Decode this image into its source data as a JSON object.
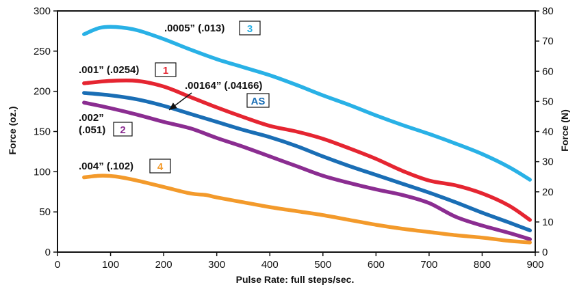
{
  "chart_data": {
    "type": "line",
    "xlabel": "Pulse Rate: full steps/sec.",
    "ylabel": "Force (oz.)",
    "y2label": "Force (N)",
    "xlim": [
      0,
      900
    ],
    "ylim": [
      0,
      300
    ],
    "y2lim": [
      0,
      80
    ],
    "xticks": [
      0,
      100,
      200,
      300,
      400,
      500,
      600,
      700,
      800,
      900
    ],
    "yticks": [
      0,
      50,
      100,
      150,
      200,
      250,
      300
    ],
    "y2ticks": [
      0,
      10,
      20,
      30,
      40,
      50,
      60,
      70,
      80
    ],
    "grid": false,
    "series": [
      {
        "id": "3",
        "color": "#29b1e6",
        "x": [
          50,
          80,
          110,
          150,
          200,
          250,
          300,
          350,
          400,
          450,
          500,
          550,
          600,
          650,
          700,
          750,
          800,
          850,
          890
        ],
        "y": [
          271,
          279,
          280,
          276,
          265,
          252,
          240,
          230,
          220,
          208,
          195,
          183,
          170,
          158,
          147,
          135,
          122,
          106,
          90
        ]
      },
      {
        "id": "1",
        "color": "#e52531",
        "x": [
          50,
          100,
          150,
          200,
          250,
          300,
          350,
          400,
          450,
          500,
          550,
          600,
          650,
          700,
          750,
          800,
          850,
          890
        ],
        "y": [
          210,
          213,
          213,
          206,
          193,
          180,
          168,
          157,
          150,
          141,
          129,
          116,
          101,
          89,
          83,
          73,
          58,
          40
        ]
      },
      {
        "id": "AS",
        "color": "#1a6eb5",
        "x": [
          50,
          100,
          150,
          200,
          250,
          300,
          350,
          400,
          450,
          500,
          550,
          600,
          650,
          700,
          750,
          800,
          850,
          890
        ],
        "y": [
          198,
          195,
          190,
          182,
          172,
          162,
          152,
          143,
          132,
          119,
          107,
          96,
          85,
          74,
          62,
          49,
          37,
          27
        ]
      },
      {
        "id": "2",
        "color": "#8b2d91",
        "x": [
          50,
          100,
          150,
          200,
          250,
          300,
          350,
          400,
          450,
          500,
          550,
          600,
          650,
          700,
          750,
          800,
          850,
          890
        ],
        "y": [
          186,
          179,
          171,
          162,
          154,
          142,
          131,
          119,
          107,
          95,
          86,
          78,
          71,
          61,
          44,
          33,
          24,
          16
        ]
      },
      {
        "id": "4",
        "color": "#f39a2b",
        "x": [
          50,
          80,
          110,
          150,
          200,
          250,
          280,
          300,
          350,
          400,
          450,
          500,
          550,
          600,
          650,
          700,
          750,
          800,
          850,
          890
        ],
        "y": [
          93,
          95,
          94,
          89,
          81,
          73,
          71,
          68,
          62,
          56,
          51,
          46,
          40,
          34,
          29,
          25,
          21,
          18,
          14,
          12
        ]
      }
    ],
    "annotations": [
      {
        "series": "3",
        "text": ".0005” (.013)",
        "badge": "3",
        "badge_color": "#29b1e6"
      },
      {
        "series": "1",
        "text": ".001” (.0254)",
        "badge": "1",
        "badge_color": "#e52531"
      },
      {
        "series": "AS",
        "text": ".00164” (.04166)",
        "badge": "AS",
        "badge_color": "#1a6eb5"
      },
      {
        "series": "2",
        "text": ".002”",
        "text2": "(.051)",
        "badge": "2",
        "badge_color": "#8b2d91"
      },
      {
        "series": "4",
        "text": ".004” (.102)",
        "badge": "4",
        "badge_color": "#f39a2b"
      }
    ]
  }
}
